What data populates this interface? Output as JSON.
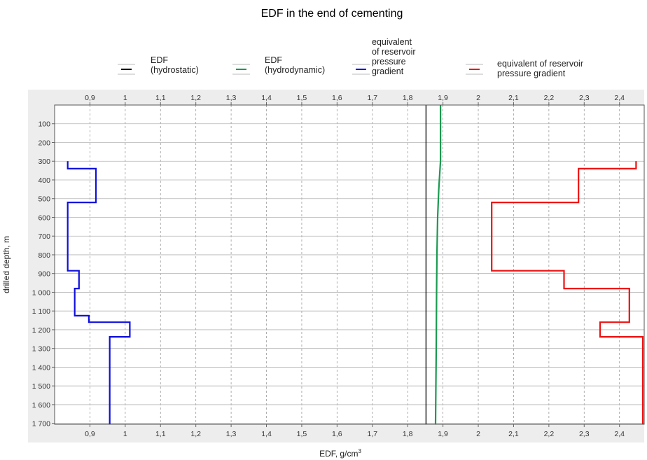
{
  "chart_data": {
    "type": "line",
    "title": "EDF in the end of cementing",
    "xlabel": "EDF, g/cm",
    "xlabel_superscript": "3",
    "ylabel": "drilled depth, m",
    "xlim": [
      0.8,
      2.47
    ],
    "ylim": [
      0,
      1705
    ],
    "y_inverted": true,
    "grid": true,
    "legend_position": "top",
    "x_ticks": [
      "0,9",
      "1",
      "1,1",
      "1,2",
      "1,3",
      "1,4",
      "1,5",
      "1,6",
      "1,7",
      "1,8",
      "1,9",
      "2",
      "2,1",
      "2,2",
      "2,3",
      "2,4"
    ],
    "x_tick_values": [
      0.9,
      1.0,
      1.1,
      1.2,
      1.3,
      1.4,
      1.5,
      1.6,
      1.7,
      1.8,
      1.9,
      2.0,
      2.1,
      2.2,
      2.3,
      2.4
    ],
    "y_ticks": [
      "100",
      "200",
      "300",
      "400",
      "500",
      "600",
      "700",
      "800",
      "900",
      "1 000",
      "1 100",
      "1 200",
      "1 300",
      "1 400",
      "1 500",
      "1 600",
      "1 700"
    ],
    "y_tick_values": [
      100,
      200,
      300,
      400,
      500,
      600,
      700,
      800,
      900,
      1000,
      1100,
      1200,
      1300,
      1400,
      1500,
      1600,
      1700
    ],
    "series": [
      {
        "name": "EDF\n(hydrostatic)",
        "color": "#000000",
        "points": [
          [
            1.852,
            0
          ],
          [
            1.852,
            1705
          ]
        ]
      },
      {
        "name": "EDF\n(hydrodynamic)",
        "color": "#1a9a50",
        "points": [
          [
            1.893,
            0
          ],
          [
            1.893,
            300
          ],
          [
            1.888,
            450
          ],
          [
            1.885,
            600
          ],
          [
            1.883,
            800
          ],
          [
            1.882,
            1000
          ],
          [
            1.881,
            1300
          ],
          [
            1.88,
            1500
          ],
          [
            1.879,
            1705
          ]
        ]
      },
      {
        "name": "equivalent\nof reservoir\npressure\ngradient",
        "color": "#1010dd",
        "points": [
          [
            0.837,
            300
          ],
          [
            0.837,
            340
          ],
          [
            0.917,
            340
          ],
          [
            0.917,
            520
          ],
          [
            0.837,
            520
          ],
          [
            0.837,
            885
          ],
          [
            0.869,
            885
          ],
          [
            0.869,
            980
          ],
          [
            0.857,
            980
          ],
          [
            0.857,
            1125
          ],
          [
            0.897,
            1125
          ],
          [
            0.897,
            1160
          ],
          [
            1.013,
            1160
          ],
          [
            1.013,
            1238
          ],
          [
            0.956,
            1238
          ],
          [
            0.956,
            1705
          ]
        ]
      },
      {
        "name": "equivalent of reservoir\npressure gradient",
        "color": "#ee1111",
        "points": [
          [
            2.447,
            300
          ],
          [
            2.447,
            340
          ],
          [
            2.284,
            340
          ],
          [
            2.284,
            520
          ],
          [
            2.038,
            520
          ],
          [
            2.038,
            885
          ],
          [
            2.243,
            885
          ],
          [
            2.243,
            980
          ],
          [
            2.428,
            980
          ],
          [
            2.428,
            1160
          ],
          [
            2.345,
            1160
          ],
          [
            2.345,
            1238
          ],
          [
            2.466,
            1238
          ],
          [
            2.466,
            1705
          ]
        ]
      }
    ]
  }
}
